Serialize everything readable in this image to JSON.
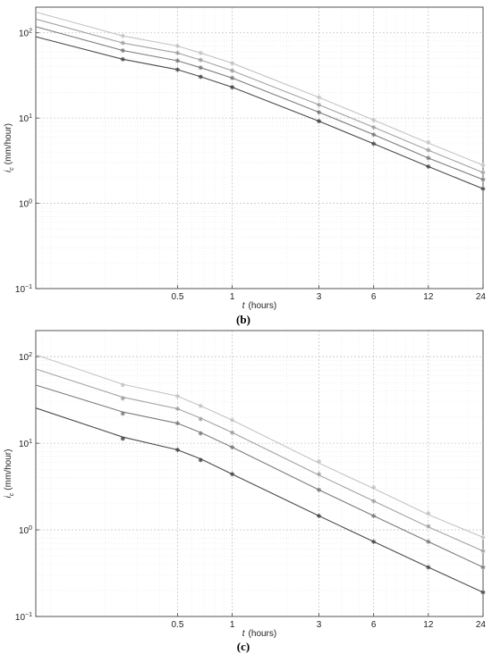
{
  "chart_data": [
    {
      "type": "line",
      "panel_label": "(b)",
      "xlabel_italic": "t",
      "xlabel_unit": "(hours)",
      "ylabel_italic": "i",
      "ylabel_sub": "c",
      "ylabel_unit": "(mm/hour)",
      "x_scale": "log",
      "y_scale": "log",
      "xlim": [
        0.083,
        24
      ],
      "ylim": [
        0.1,
        200
      ],
      "grid": true,
      "x_tick_labels": [
        "0.5",
        "1",
        "3",
        "6",
        "12",
        "24"
      ],
      "x_ticks": [
        0.5,
        1,
        3,
        6,
        12,
        24
      ],
      "y_tick_labels": [
        {
          "base": "10",
          "exp": "2",
          "value": 100
        },
        {
          "base": "10",
          "exp": "1",
          "value": 10
        },
        {
          "base": "10",
          "exp": "0",
          "value": 1
        },
        {
          "base": "10",
          "exp": "−1",
          "value": 0.1
        }
      ],
      "series": [
        {
          "color": "#c4c4c4",
          "x": [
            0.083,
            0.25,
            0.5,
            0.67,
            1,
            3,
            6,
            12,
            24
          ],
          "points": [
            0.25,
            0.5,
            0.67,
            1,
            3,
            6,
            12,
            24
          ],
          "y": [
            175,
            92,
            70,
            58,
            44,
            17.5,
            9.5,
            5.1,
            2.8
          ],
          "point_values": [
            140,
            92,
            70,
            58,
            44,
            17.5,
            9.5,
            5.2,
            2.8
          ]
        },
        {
          "color": "#a2a2a2",
          "x": [
            0.083,
            0.25,
            0.5,
            0.67,
            1,
            3,
            6,
            12,
            24
          ],
          "points": [
            0.25,
            0.5,
            0.67,
            1,
            3,
            6,
            12,
            24
          ],
          "y": [
            145,
            76,
            58,
            48,
            36,
            14.3,
            7.8,
            4.2,
            2.3
          ],
          "point_values": [
            112,
            76,
            58,
            48,
            36,
            14.3,
            7.8,
            4.2,
            2.3
          ]
        },
        {
          "color": "#7c7c7c",
          "x": [
            0.083,
            0.25,
            0.5,
            0.67,
            1,
            3,
            6,
            12,
            24
          ],
          "points": [
            0.25,
            0.5,
            0.67,
            1,
            3,
            6,
            12,
            24
          ],
          "y": [
            118,
            62,
            47,
            39,
            29.5,
            11.7,
            6.4,
            3.4,
            1.9
          ],
          "point_values": [
            92,
            62,
            47,
            39,
            29.5,
            11.7,
            6.4,
            3.4,
            1.9
          ]
        },
        {
          "color": "#4a4a4a",
          "x": [
            0.083,
            0.25,
            0.5,
            0.67,
            1,
            3,
            6,
            12,
            24
          ],
          "points": [
            0.25,
            0.5,
            0.67,
            1,
            3,
            6,
            12,
            24
          ],
          "y": [
            90,
            49,
            37,
            30.5,
            23,
            9.2,
            5.0,
            2.7,
            1.48
          ],
          "point_values": [
            72,
            49,
            37,
            30.5,
            23,
            9.2,
            5.0,
            2.7,
            1.48
          ]
        }
      ]
    },
    {
      "type": "line",
      "panel_label": "(c)",
      "xlabel_italic": "t",
      "xlabel_unit": "(hours)",
      "ylabel_italic": "i",
      "ylabel_sub": "c",
      "ylabel_unit": "(mm/hour)",
      "x_scale": "log",
      "y_scale": "log",
      "xlim": [
        0.083,
        24
      ],
      "ylim": [
        0.1,
        200
      ],
      "grid": true,
      "x_tick_labels": [
        "0.5",
        "1",
        "3",
        "6",
        "12",
        "24"
      ],
      "x_ticks": [
        0.5,
        1,
        3,
        6,
        12,
        24
      ],
      "y_tick_labels": [
        {
          "base": "10",
          "exp": "2",
          "value": 100
        },
        {
          "base": "10",
          "exp": "1",
          "value": 10
        },
        {
          "base": "10",
          "exp": "0",
          "value": 1
        },
        {
          "base": "10",
          "exp": "−1",
          "value": 0.1
        }
      ],
      "series": [
        {
          "color": "#c4c4c4",
          "x": [
            0.083,
            0.25,
            0.5,
            0.67,
            1,
            3,
            6,
            12,
            24
          ],
          "points": [
            0.25,
            0.5,
            0.67,
            1,
            3,
            6,
            12,
            24
          ],
          "y": [
            105,
            48,
            35,
            27,
            18.5,
            5.9,
            3.0,
            1.5,
            0.82
          ],
          "point_values": [
            73,
            47,
            35,
            27,
            18.5,
            6.2,
            3.1,
            1.55,
            0.82
          ]
        },
        {
          "color": "#a2a2a2",
          "x": [
            0.083,
            0.25,
            0.5,
            0.67,
            1,
            3,
            6,
            12,
            24
          ],
          "points": [
            0.25,
            0.5,
            0.67,
            1,
            3,
            6,
            12,
            24
          ],
          "y": [
            72,
            34,
            25,
            19.5,
            13.3,
            4.3,
            2.15,
            1.08,
            0.57
          ],
          "point_values": [
            52,
            33,
            25,
            19,
            13.3,
            4.4,
            2.15,
            1.1,
            0.57
          ]
        },
        {
          "color": "#7c7c7c",
          "x": [
            0.083,
            0.25,
            0.5,
            0.67,
            1,
            3,
            6,
            12,
            24
          ],
          "points": [
            0.25,
            0.5,
            0.67,
            1,
            3,
            6,
            12,
            24
          ],
          "y": [
            47,
            23,
            17,
            13.3,
            9.0,
            2.9,
            1.45,
            0.73,
            0.37
          ],
          "point_values": [
            35,
            22,
            17,
            13,
            9.0,
            2.9,
            1.45,
            0.73,
            0.37
          ]
        },
        {
          "color": "#4a4a4a",
          "x": [
            0.083,
            0.25,
            0.5,
            0.67,
            1,
            3,
            6,
            12,
            24
          ],
          "points": [
            0.25,
            0.5,
            0.67,
            1,
            3,
            6,
            12,
            24
          ],
          "y": [
            25.5,
            11.8,
            8.4,
            6.6,
            4.4,
            1.45,
            0.73,
            0.37,
            0.19
          ],
          "point_values": [
            17.5,
            11.3,
            8.4,
            6.4,
            4.4,
            1.45,
            0.73,
            0.37,
            0.19
          ]
        }
      ]
    }
  ]
}
